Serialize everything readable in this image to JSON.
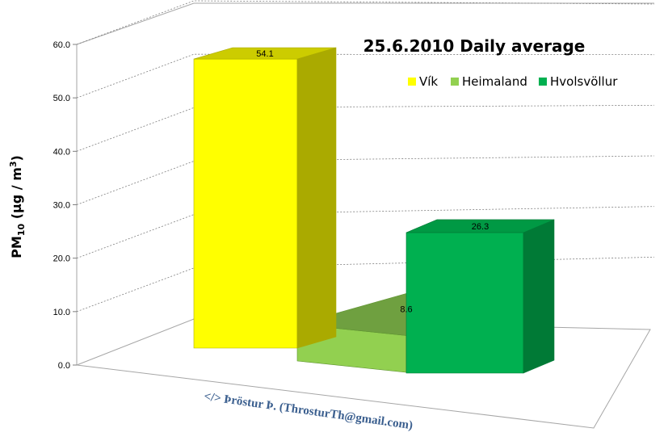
{
  "chart_data": {
    "type": "bar",
    "title": "25.6.2010 Daily average",
    "ylabel_main": "PM",
    "ylabel_sub": "10",
    "ylabel_unit_prefix": " (μg / m",
    "ylabel_unit_sup": "3",
    "ylabel_unit_suffix": ")",
    "ylim": [
      0,
      60
    ],
    "yticks": [
      "0.0",
      "10.0",
      "20.0",
      "30.0",
      "40.0",
      "50.0",
      "60.0"
    ],
    "grid": true,
    "legend_position": "top-right",
    "series": [
      {
        "name": "Vík",
        "value": 54.1,
        "label": "54.1",
        "color": "#ffff00",
        "side": "#aaaa00",
        "top": "#cccc00"
      },
      {
        "name": "Heimaland",
        "value": 8.6,
        "label": "8.6",
        "color": "#92d050",
        "side": "#5f9431",
        "top": "#6fa040"
      },
      {
        "name": "Hvolsvöllur",
        "value": 26.3,
        "label": "26.3",
        "color": "#00b050",
        "side": "#007a36",
        "top": "#009944"
      }
    ]
  },
  "footer": {
    "credit": "</> Þröstur Þ. (ThrosturTh@gmail.com)"
  }
}
